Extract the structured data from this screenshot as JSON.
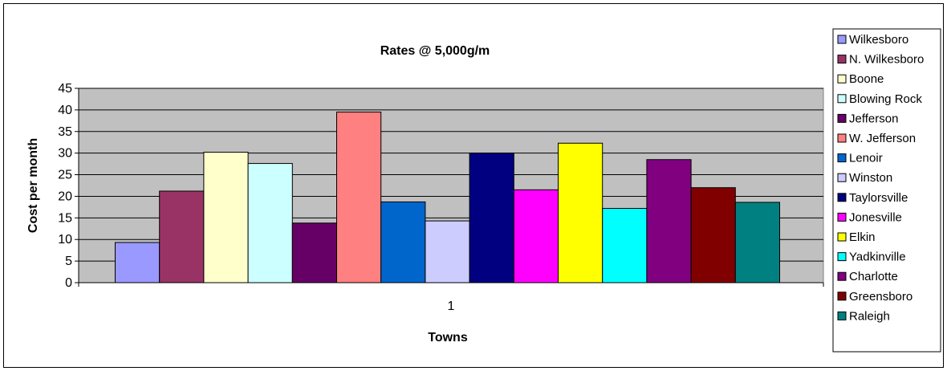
{
  "chart_data": {
    "type": "bar",
    "title": "Rates @ 5,000g/m",
    "xlabel": "Towns",
    "ylabel": "Cost per month",
    "categories": [
      "1"
    ],
    "ylim": [
      0,
      45
    ],
    "yticks": [
      0,
      5,
      10,
      15,
      20,
      25,
      30,
      35,
      40,
      45
    ],
    "grid": true,
    "legend_position": "right",
    "series": [
      {
        "name": "Wilkesboro",
        "values": [
          9.3
        ],
        "color": "#9999FF"
      },
      {
        "name": "N. Wilkesboro",
        "values": [
          21.2
        ],
        "color": "#993366"
      },
      {
        "name": "Boone",
        "values": [
          30.2
        ],
        "color": "#FFFFCC"
      },
      {
        "name": "Blowing Rock",
        "values": [
          27.6
        ],
        "color": "#CCFFFF"
      },
      {
        "name": "Jefferson",
        "values": [
          13.8
        ],
        "color": "#660066"
      },
      {
        "name": "W. Jefferson",
        "values": [
          39.5
        ],
        "color": "#FF8080"
      },
      {
        "name": "Lenoir",
        "values": [
          18.7
        ],
        "color": "#0066CC"
      },
      {
        "name": "Winston",
        "values": [
          14.3
        ],
        "color": "#CCCCFF"
      },
      {
        "name": "Taylorsville",
        "values": [
          30.0
        ],
        "color": "#000080"
      },
      {
        "name": "Jonesville",
        "values": [
          21.5
        ],
        "color": "#FF00FF"
      },
      {
        "name": "Elkin",
        "values": [
          32.3
        ],
        "color": "#FFFF00"
      },
      {
        "name": "Yadkinville",
        "values": [
          17.2
        ],
        "color": "#00FFFF"
      },
      {
        "name": "Charlotte",
        "values": [
          28.5
        ],
        "color": "#800080"
      },
      {
        "name": "Greensboro",
        "values": [
          22.0
        ],
        "color": "#800000"
      },
      {
        "name": "Raleigh",
        "values": [
          18.6
        ],
        "color": "#008080"
      }
    ],
    "plot_background": "#C0C0C0"
  }
}
